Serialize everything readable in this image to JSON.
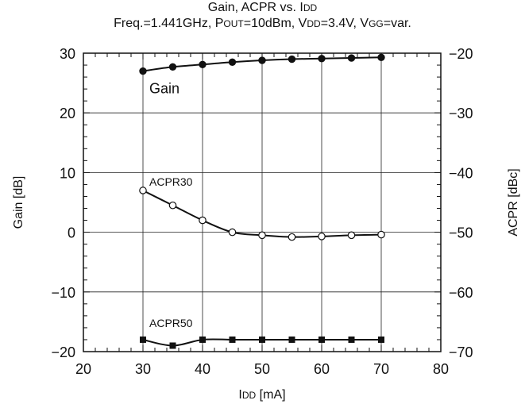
{
  "chart_data": {
    "type": "line",
    "title_parts": [
      [
        {
          "text": "Gain, ACPR vs. I",
          "small": false
        },
        {
          "text": "DD",
          "small": true
        }
      ],
      [
        {
          "text": "Freq.=1.441GHz, P",
          "small": false
        },
        {
          "text": "OUT",
          "small": true
        },
        {
          "text": "=10dBm, V",
          "small": false
        },
        {
          "text": "DD",
          "small": true
        },
        {
          "text": "=3.4V, V",
          "small": false
        },
        {
          "text": "GG",
          "small": true
        },
        {
          "text": "=var.",
          "small": false
        }
      ]
    ],
    "xlabel_parts": [
      {
        "text": "I",
        "small": false
      },
      {
        "text": "DD",
        "small": true
      },
      {
        "text": " [mA]",
        "small": false
      }
    ],
    "ylabel_left": "Gain [dB]",
    "ylabel_right": "ACPR [dBc]",
    "xlim": [
      20,
      80
    ],
    "ylim_left": [
      -20,
      30
    ],
    "ylim_right": [
      -70,
      -20
    ],
    "xticks": [
      20,
      30,
      40,
      50,
      60,
      70,
      80
    ],
    "xtick_labels": [
      "20",
      "30",
      "40",
      "50",
      "60",
      "70",
      "80"
    ],
    "yticks_left": [
      -20,
      -10,
      0,
      10,
      20,
      30
    ],
    "ytick_labels_left": [
      "−20",
      "−10",
      "0",
      "10",
      "20",
      "30"
    ],
    "yticks_right": [
      -70,
      -60,
      -50,
      -40,
      -30,
      -20
    ],
    "ytick_labels_right": [
      "−70",
      "−60",
      "−50",
      "−40",
      "−30",
      "−20"
    ],
    "grid": true,
    "x": [
      30,
      35,
      40,
      45,
      50,
      55,
      60,
      65,
      70
    ],
    "series": [
      {
        "name": "Gain",
        "axis": "left",
        "marker": "filled-circle",
        "values": [
          27.0,
          27.7,
          28.1,
          28.5,
          28.8,
          29.0,
          29.1,
          29.2,
          29.3
        ]
      },
      {
        "name": "ACPR30",
        "axis": "right",
        "marker": "open-circle",
        "values": [
          -43.0,
          -45.5,
          -48.0,
          -50.0,
          -50.5,
          -50.8,
          -50.7,
          -50.5,
          -50.4
        ]
      },
      {
        "name": "ACPR50",
        "axis": "right",
        "marker": "filled-square",
        "values": [
          -68.0,
          -69.0,
          -68.0,
          -68.0,
          -68.0,
          -68.0,
          -68.0,
          -68.0,
          -68.0
        ]
      }
    ]
  }
}
